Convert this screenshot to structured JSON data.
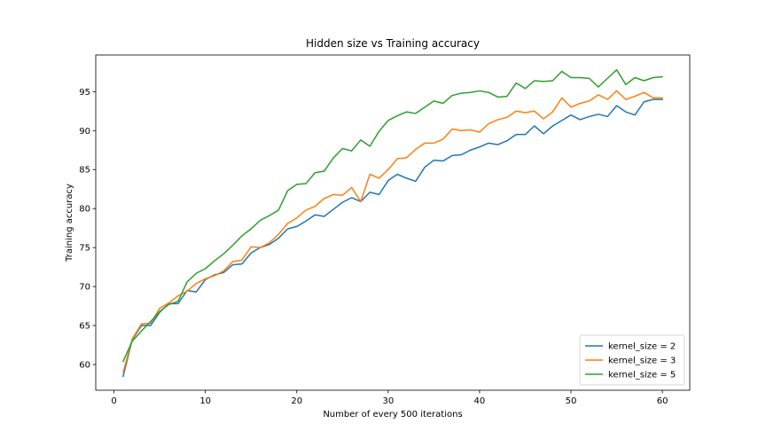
{
  "chart_data": {
    "type": "line",
    "title": "Hidden size vs Training accuracy",
    "xlabel": "Number of every 500 iterations",
    "ylabel": "Training accuracy",
    "xlim": [
      -2,
      63
    ],
    "ylim": [
      56.7,
      99.7
    ],
    "xticks": [
      0,
      10,
      20,
      30,
      40,
      50,
      60
    ],
    "yticks": [
      60,
      65,
      70,
      75,
      80,
      85,
      90,
      95
    ],
    "grid": false,
    "legend_position": "bottom-right",
    "x": [
      1,
      2,
      3,
      4,
      5,
      6,
      7,
      8,
      9,
      10,
      11,
      12,
      13,
      14,
      15,
      16,
      17,
      18,
      19,
      20,
      21,
      22,
      23,
      24,
      25,
      26,
      27,
      28,
      29,
      30,
      31,
      32,
      33,
      34,
      35,
      36,
      37,
      38,
      39,
      40,
      41,
      42,
      43,
      44,
      45,
      46,
      47,
      48,
      49,
      50,
      51,
      52,
      53,
      54,
      55,
      56,
      57,
      58,
      59,
      60
    ],
    "series": [
      {
        "name": "kernel_size = 2",
        "color": "#1f77b4",
        "values": [
          58.5,
          63.2,
          65.0,
          65.0,
          66.7,
          67.8,
          67.8,
          69.5,
          69.3,
          70.9,
          71.5,
          71.8,
          72.8,
          72.9,
          74.3,
          75.0,
          75.4,
          76.2,
          77.4,
          77.7,
          78.4,
          79.2,
          79.0,
          79.9,
          80.8,
          81.4,
          80.9,
          82.1,
          81.8,
          83.6,
          84.4,
          83.9,
          83.5,
          85.3,
          86.2,
          86.1,
          86.8,
          86.9,
          87.5,
          87.9,
          88.4,
          88.2,
          88.7,
          89.5,
          89.5,
          90.6,
          89.6,
          90.6,
          91.3,
          92.0,
          91.4,
          91.8,
          92.1,
          91.8,
          93.2,
          92.4,
          92.0,
          93.7,
          94.0,
          94.0
        ]
      },
      {
        "name": "kernel_size = 3",
        "color": "#ff7f0e",
        "values": [
          59.0,
          63.3,
          65.2,
          65.3,
          67.2,
          67.9,
          68.8,
          69.4,
          70.4,
          71.0,
          71.4,
          72.0,
          73.2,
          73.4,
          75.1,
          75.0,
          75.6,
          76.7,
          78.1,
          78.8,
          79.8,
          80.3,
          81.3,
          81.8,
          81.7,
          82.7,
          80.9,
          84.4,
          83.9,
          85.0,
          86.4,
          86.5,
          87.6,
          88.4,
          88.4,
          88.9,
          90.2,
          90.0,
          90.1,
          89.8,
          90.9,
          91.4,
          91.7,
          92.5,
          92.3,
          92.5,
          91.5,
          92.4,
          94.2,
          93.0,
          93.5,
          93.8,
          94.6,
          94.0,
          95.1,
          94.0,
          94.4,
          94.9,
          94.2,
          94.2
        ]
      },
      {
        "name": "kernel_size = 5",
        "color": "#2ca02c",
        "values": [
          60.4,
          63.0,
          64.3,
          65.5,
          66.8,
          67.7,
          68.1,
          70.6,
          71.7,
          72.3,
          73.3,
          74.2,
          75.3,
          76.5,
          77.4,
          78.5,
          79.1,
          79.8,
          82.3,
          83.1,
          83.2,
          84.6,
          84.8,
          86.5,
          87.7,
          87.4,
          88.8,
          88.0,
          89.9,
          91.3,
          91.9,
          92.4,
          92.2,
          93.0,
          93.8,
          93.5,
          94.5,
          94.8,
          94.9,
          95.1,
          94.9,
          94.3,
          94.4,
          96.1,
          95.4,
          96.4,
          96.3,
          96.4,
          97.6,
          96.8,
          96.8,
          96.7,
          95.6,
          96.7,
          97.8,
          95.9,
          96.8,
          96.4,
          96.8,
          96.9
        ]
      }
    ]
  }
}
